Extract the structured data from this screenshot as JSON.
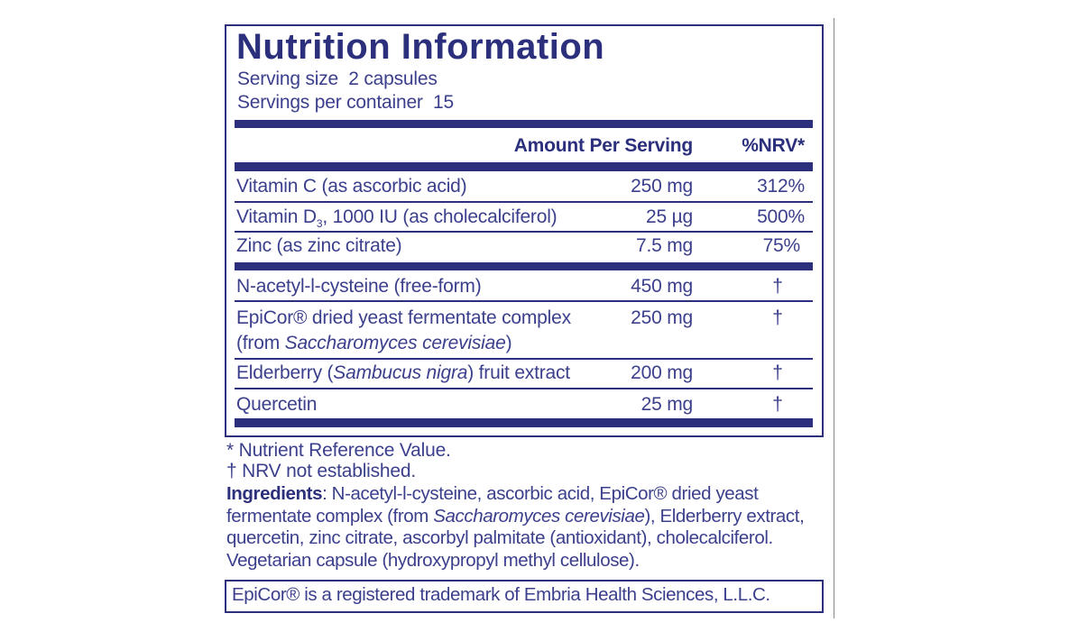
{
  "header": {
    "title": "Nutrition Information",
    "serving_size": "Serving size  2 capsules",
    "servings_per_container": "Servings per container  15"
  },
  "table": {
    "columns": [
      "Amount Per Serving",
      "%NRV*"
    ],
    "rows": [
      {
        "name": [
          "Vitamin C (as ascorbic acid)"
        ],
        "amount": "250 mg",
        "nrv": "312%"
      },
      {
        "name": [
          "Vitamin D",
          "3",
          ", 1000 IU (as cholecalciferol)"
        ],
        "amount": "25 µg",
        "nrv": "500%"
      },
      {
        "name": [
          "Zinc (as zinc citrate)"
        ],
        "amount": "7.5 mg",
        "nrv": "75%"
      },
      {
        "name": [
          "N-acetyl-l-cysteine (free-form)"
        ],
        "amount": "450 mg",
        "nrv": "†"
      },
      {
        "name": [
          "EpiCor® dried yeast fermentate complex",
          "(from ",
          "Saccharomyces cerevisiae",
          ")"
        ],
        "amount": "250 mg",
        "nrv": "†"
      },
      {
        "name": [
          "Elderberry (",
          "Sambucus nigra",
          ") fruit extract"
        ],
        "amount": "200 mg",
        "nrv": "†"
      },
      {
        "name": [
          "Quercetin"
        ],
        "amount": "25 mg",
        "nrv": "†"
      }
    ]
  },
  "footnotes": [
    "* Nutrient Reference Value.",
    "† NRV not established."
  ],
  "ingredients": {
    "label": "Ingredients",
    "text": [
      ": N-acetyl-l-cysteine, ascorbic acid, EpiCor® dried yeast fermentate complex (from ",
      "Saccharomyces cerevisiae",
      "), Elderberry extract, quercetin, zinc citrate, ascorbyl palmitate (antioxidant), cholecalciferol. Vegetarian capsule (hydroxypropyl methyl cellulose)."
    ]
  },
  "trademark": "EpiCor® is a registered trademark of Embria Health Sciences, L.L.C."
}
